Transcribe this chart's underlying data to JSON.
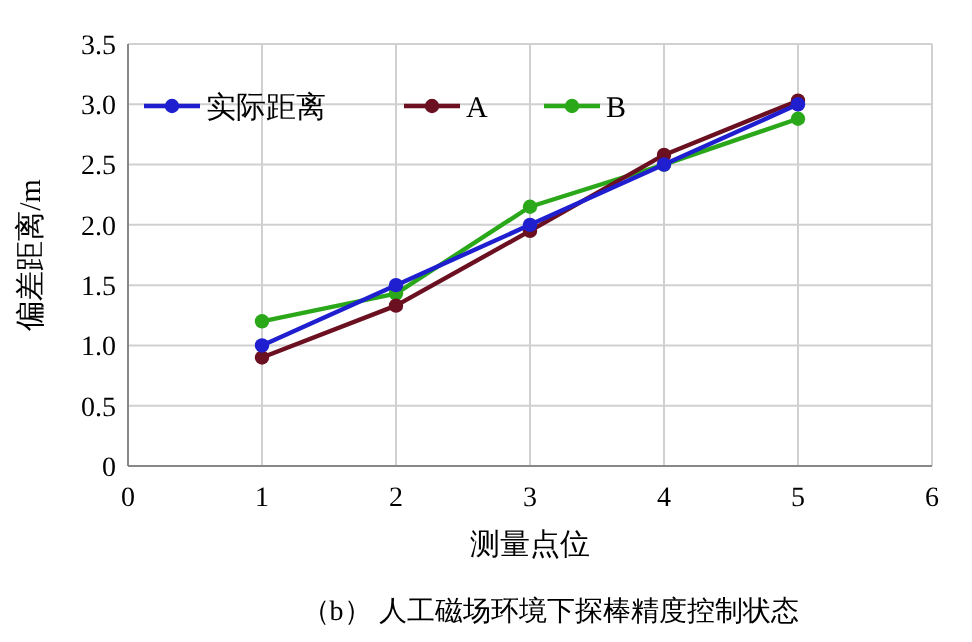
{
  "chart_data": {
    "type": "line",
    "title": "（b） 人工磁场环境下探棒精度控制状态",
    "xlabel": "测量点位",
    "ylabel": "偏差距离/m",
    "x": [
      1,
      2,
      3,
      4,
      5
    ],
    "series": [
      {
        "name": "实际距离",
        "color": "#1f1fd0",
        "values": [
          1.0,
          1.5,
          2.0,
          2.5,
          3.0
        ]
      },
      {
        "name": "A",
        "color": "#6b1020",
        "values": [
          0.9,
          1.33,
          1.95,
          2.58,
          3.03
        ]
      },
      {
        "name": "B",
        "color": "#2aa81a",
        "values": [
          1.2,
          1.43,
          2.15,
          2.5,
          2.88
        ]
      }
    ],
    "xlim": [
      0,
      6
    ],
    "xticks": [
      0,
      1,
      2,
      3,
      4,
      5,
      6
    ],
    "ylim": [
      0,
      3.5
    ],
    "yticks": [
      {
        "value": 0,
        "label": "0"
      },
      {
        "value": 0.5,
        "label": "0.5"
      },
      {
        "value": 1,
        "label": "1.0"
      },
      {
        "value": 1.5,
        "label": "1.5"
      },
      {
        "value": 2,
        "label": "2.0"
      },
      {
        "value": 2.5,
        "label": "2.5"
      },
      {
        "value": 3,
        "label": "3.0"
      },
      {
        "value": 3.5,
        "label": "3.5"
      }
    ],
    "grid": true,
    "legend": "top left",
    "marker": "circle",
    "line_style": "solid"
  }
}
